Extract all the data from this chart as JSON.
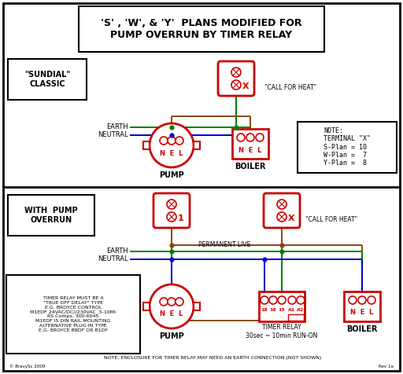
{
  "title": "'S' , 'W', & 'Y'  PLANS MODIFIED FOR\nPUMP OVERRUN BY TIMER RELAY",
  "bg_color": "#ffffff",
  "border_color": "#000000",
  "wire_brown": "#8B4513",
  "wire_green": "#008000",
  "wire_blue": "#0000CC",
  "component_red": "#CC0000",
  "text_color": "#000000",
  "note_text": "NOTE:\nTERMINAL \"X\"\nS-Plan = 10\nW-Plan =  7\nY-Plan =  8",
  "timer_note": "NOTE: ENCLOSURE FOR TIMER RELAY MAY NEED AN EARTH CONNECTION (NOT SHOWN)",
  "sundial_label": "\"SUNDIAL\"\nCLASSIC",
  "pump_overrun_label": "WITH  PUMP\nOVERRUN",
  "timer_relay_text": "TIMER RELAY MUST BE A\n\"TRUE OFF DELAY\" TYPE\nE.G. BROYCE CONTROL\nM1EDF 24VAC/DC//230VAC .5-10MI\nRS Comps. 300-6045\nM1EDF IS DIN RAIL MOUNTING\nALTERNATIVE PLUG-IN TYPE\nE.G. BROYCE B8DF OR B1DF",
  "call_for_heat": "\"CALL FOR HEAT\"",
  "permanent_live": "PERMANENT LIVE",
  "earth_label": "EARTH",
  "neutral_label": "NEUTRAL",
  "pump_label": "PUMP",
  "boiler_label": "BOILER",
  "timer_relay_label": "TIMER RELAY\n30sec ~ 10min RUN-ON",
  "rev_label": "Rev 1a",
  "copyright": "© BravySc 2009"
}
